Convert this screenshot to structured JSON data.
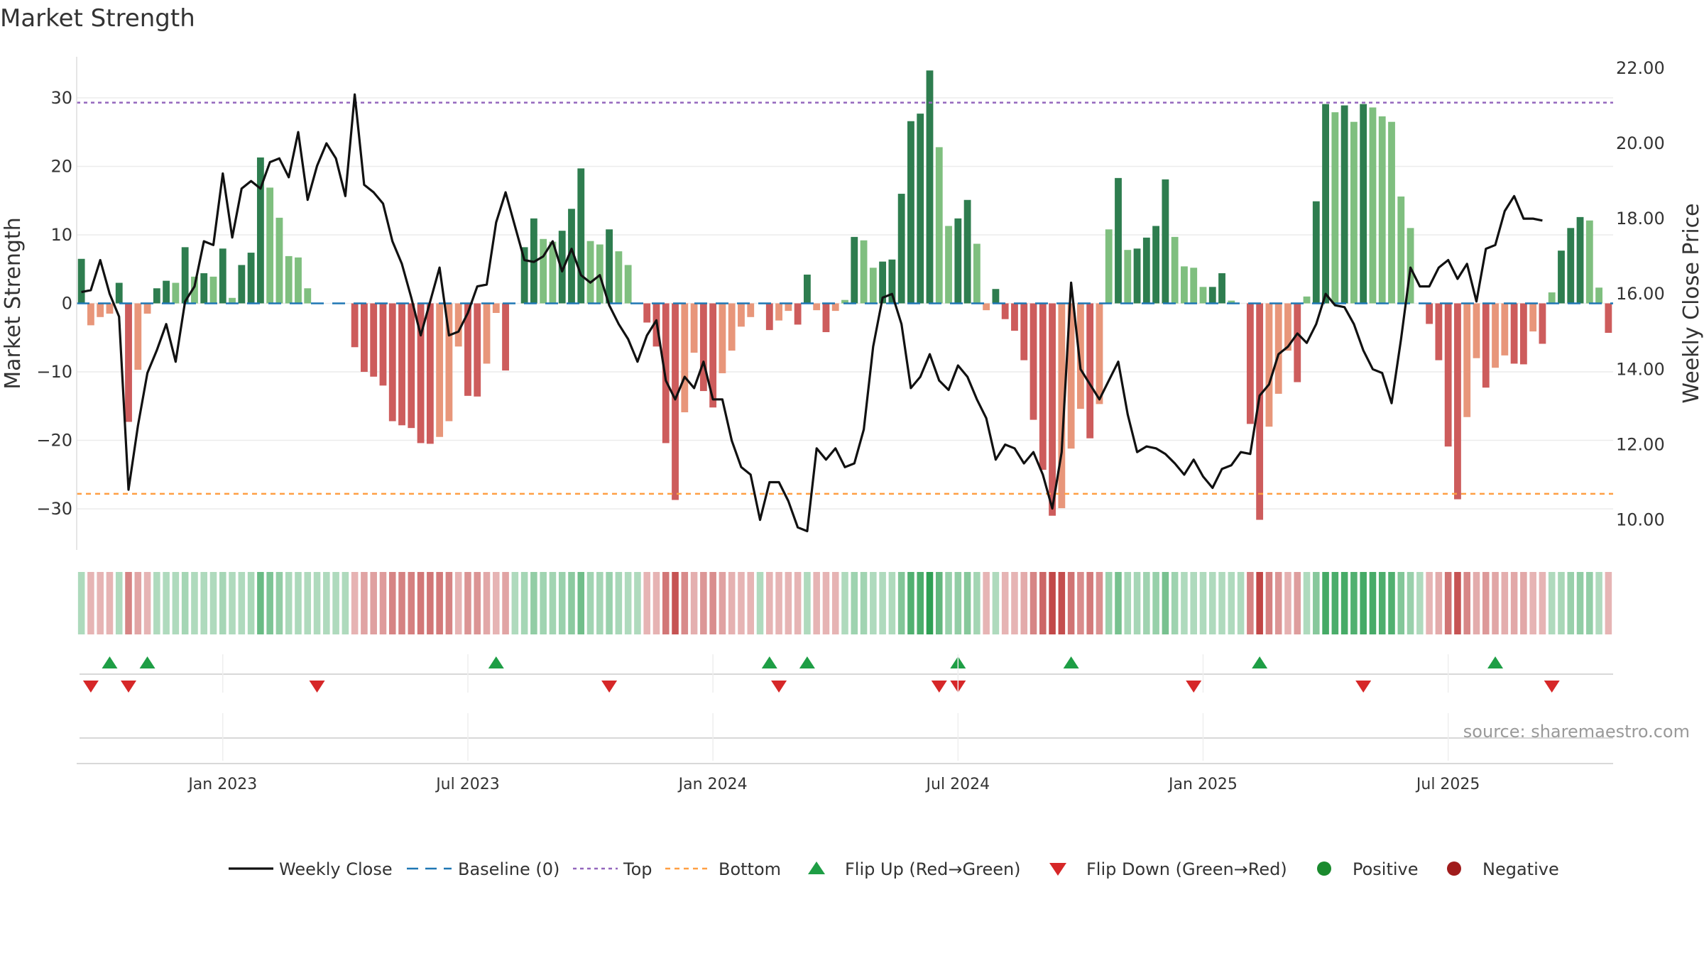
{
  "chart_data": {
    "type": "bar",
    "title": "Market Strength",
    "ylabel": "Market Strength",
    "y2label": "Weekly Close Price",
    "ylim": [
      -36,
      36
    ],
    "y2lim": [
      9.2,
      22.3
    ],
    "yticks": [
      "30",
      "20",
      "10",
      "0",
      "−10",
      "−20",
      "−30"
    ],
    "yticks_values": [
      30,
      20,
      10,
      0,
      -10,
      -20,
      -30
    ],
    "y2ticks": [
      "22.00",
      "20.00",
      "18.00",
      "16.00",
      "14.00",
      "12.00",
      "10.00"
    ],
    "y2ticks_values": [
      22,
      20,
      18,
      16,
      14,
      12,
      10
    ],
    "xtick_labels": [
      "Jan 2023",
      "Jul 2023",
      "Jan 2024",
      "Jul 2024",
      "Jan 2025",
      "Jul 2025"
    ],
    "xtick_weeks": [
      15,
      41,
      67,
      93,
      119,
      145
    ],
    "top": 29.3,
    "bottom": -27.8,
    "strength": [
      6.5,
      -3.2,
      -2.0,
      -1.5,
      3.0,
      -17.3,
      -9.7,
      -1.5,
      2.2,
      3.3,
      3.0,
      8.2,
      3.9,
      4.4,
      3.9,
      8.0,
      0.8,
      5.6,
      7.4,
      21.3,
      16.9,
      12.5,
      6.9,
      6.7,
      2.2,
      0,
      0,
      0,
      0,
      -6.4,
      -10.0,
      -10.7,
      -12.0,
      -17.2,
      -17.8,
      -18.2,
      -20.4,
      -20.5,
      -19.5,
      -17.2,
      -6.3,
      -13.5,
      -13.6,
      -8.8,
      -1.4,
      -9.8,
      0,
      8.2,
      12.4,
      9.4,
      9.0,
      10.6,
      13.8,
      19.7,
      9.1,
      8.6,
      10.8,
      7.6,
      5.6,
      0,
      -2.8,
      -6.3,
      -20.4,
      -28.7,
      -15.9,
      -7.2,
      -12.8,
      -15.2,
      -10.2,
      -6.9,
      -3.4,
      -2.0,
      0,
      -3.9,
      -2.5,
      -1.1,
      -3.1,
      4.2,
      -1.0,
      -4.2,
      -1.1,
      0.5,
      9.7,
      9.2,
      5.2,
      6.1,
      6.4,
      16.0,
      26.6,
      27.7,
      34.0,
      22.8,
      11.3,
      12.4,
      15.1,
      8.7,
      -1.0,
      2.1,
      -2.3,
      -4.0,
      -8.3,
      -17.0,
      -24.3,
      -31.0,
      -29.9,
      -21.2,
      -15.4,
      -19.7,
      -14.7,
      10.8,
      18.3,
      7.8,
      8.0,
      9.6,
      11.3,
      18.1,
      9.7,
      5.4,
      5.2,
      2.4,
      2.4,
      4.4,
      0.4,
      0,
      -17.6,
      -31.6,
      -18.0,
      -13.2,
      -6.9,
      -11.5,
      1.0,
      14.9,
      29.1,
      27.9,
      28.9,
      26.5,
      29.1,
      28.6,
      27.3,
      26.5,
      15.6,
      11.0,
      0,
      -3.0,
      -8.3,
      -20.9,
      -28.6,
      -16.6,
      -8.0,
      -12.3,
      -9.4,
      -7.6,
      -8.8,
      -8.9,
      -4.1,
      -5.9,
      1.6,
      7.7,
      11.0,
      12.6,
      12.1,
      2.3,
      -4.3
    ],
    "weekly_close": [
      16.05,
      16.1,
      16.9,
      16.0,
      15.4,
      10.8,
      12.5,
      13.9,
      14.5,
      15.2,
      14.2,
      15.8,
      16.2,
      17.4,
      17.3,
      19.2,
      17.5,
      18.8,
      19.0,
      18.8,
      19.5,
      19.6,
      19.1,
      20.3,
      18.5,
      19.4,
      20.0,
      19.6,
      18.6,
      21.3,
      18.9,
      18.7,
      18.4,
      17.4,
      16.8,
      15.9,
      14.9,
      15.8,
      16.7,
      14.9,
      15.0,
      15.5,
      16.2,
      16.25,
      17.9,
      18.7,
      17.8,
      16.9,
      16.85,
      17.0,
      17.4,
      16.6,
      17.2,
      16.5,
      16.3,
      16.5,
      15.7,
      15.2,
      14.8,
      14.2,
      14.9,
      15.3,
      13.7,
      13.2,
      13.8,
      13.5,
      14.2,
      13.2,
      13.2,
      12.1,
      11.4,
      11.2,
      10.0,
      11.0,
      11.0,
      10.5,
      9.8,
      9.7,
      11.9,
      11.6,
      11.9,
      11.4,
      11.5,
      12.4,
      14.6,
      15.9,
      16.0,
      15.2,
      13.5,
      13.8,
      14.4,
      13.7,
      13.45,
      14.1,
      13.8,
      13.2,
      12.7,
      11.6,
      12.0,
      11.9,
      11.5,
      11.8,
      11.2,
      10.3,
      11.8,
      16.3,
      14.0,
      13.6,
      13.2,
      13.7,
      14.2,
      12.8,
      11.8,
      11.95,
      11.9,
      11.75,
      11.5,
      11.2,
      11.6,
      11.15,
      10.85,
      11.35,
      11.45,
      11.8,
      11.75,
      13.3,
      13.6,
      14.4,
      14.6,
      14.95,
      14.7,
      15.2,
      16.0,
      15.7,
      15.65,
      15.2,
      14.5,
      14.0,
      13.9,
      13.1,
      14.8,
      16.7,
      16.2,
      16.2,
      16.7,
      16.9,
      16.4,
      16.8,
      15.8,
      17.2,
      17.3,
      18.2,
      18.6,
      18.0,
      18.0,
      17.95
    ],
    "flip_up_weeks": [
      3,
      7,
      44,
      73,
      77,
      93,
      105,
      125,
      150
    ],
    "flip_down_weeks": [
      1,
      5,
      25,
      56,
      74,
      91,
      93,
      118,
      136,
      156
    ],
    "legend": [
      "Weekly Close",
      "Baseline (0)",
      "Top",
      "Bottom",
      "Flip Up (Red→Green)",
      "Flip Down (Green→Red)",
      "Positive",
      "Negative"
    ],
    "legend_position": "bottom-center"
  },
  "source": "source: sharemaestro.com",
  "colors": {
    "pos_dark": "#2e7d4f",
    "pos_light": "#7fbf7f",
    "neg_dark": "#cd5c5c",
    "neg_light": "#e8967a",
    "close_line": "#111111",
    "baseline": "#1f77b4",
    "top": "#9467bd",
    "bottom": "#ff9f43",
    "flip_up": "#1e9e45",
    "flip_down": "#d62728",
    "positive": "#1a8a2e",
    "negative": "#a01c1c"
  }
}
